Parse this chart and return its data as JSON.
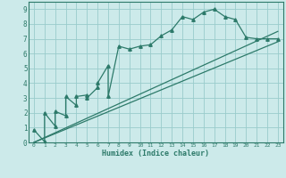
{
  "xlabel": "Humidex (Indice chaleur)",
  "xlim": [
    -0.5,
    23.5
  ],
  "ylim": [
    0,
    9.5
  ],
  "xticks": [
    0,
    1,
    2,
    3,
    4,
    5,
    6,
    7,
    8,
    9,
    10,
    11,
    12,
    13,
    14,
    15,
    16,
    17,
    18,
    19,
    20,
    21,
    22,
    23
  ],
  "yticks": [
    0,
    1,
    2,
    3,
    4,
    5,
    6,
    7,
    8,
    9
  ],
  "background_color": "#cceaea",
  "grid_color": "#99cccc",
  "line_color": "#2d7a6a",
  "figsize": [
    3.2,
    2.0
  ],
  "dpi": 100,
  "line1_x": [
    0,
    1,
    1,
    2,
    2,
    3,
    3,
    4,
    4,
    5,
    5,
    6,
    6,
    7,
    7,
    8,
    9,
    10,
    11,
    12,
    13,
    14,
    15,
    16,
    17,
    18,
    19,
    20,
    21,
    22,
    23
  ],
  "line1_y": [
    0.85,
    0.05,
    2.0,
    1.1,
    2.1,
    1.8,
    3.1,
    2.5,
    3.1,
    3.2,
    3.0,
    3.7,
    4.0,
    5.2,
    3.1,
    6.5,
    6.3,
    6.5,
    6.6,
    7.2,
    7.6,
    8.5,
    8.3,
    8.8,
    9.0,
    8.5,
    8.3,
    7.1,
    7.0,
    7.0,
    7.0
  ],
  "line2_x": [
    0,
    23
  ],
  "line2_y": [
    0.0,
    6.8
  ],
  "line3_x": [
    0,
    23
  ],
  "line3_y": [
    0.0,
    7.5
  ],
  "marker": "^",
  "markersize": 2.5
}
